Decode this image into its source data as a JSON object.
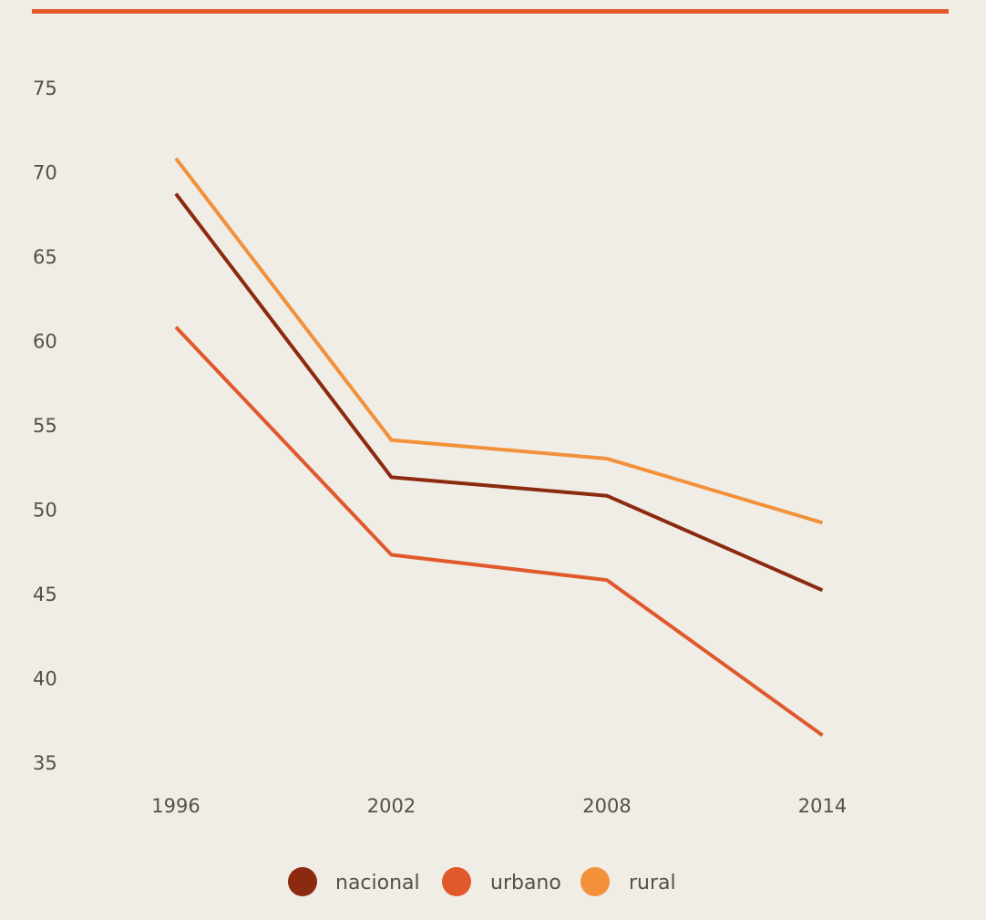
{
  "colors": {
    "background": "#f0ece6",
    "top_rule": "#e0592c",
    "text": "#55504a"
  },
  "chart_data": {
    "type": "line",
    "title": "",
    "xlabel": "",
    "ylabel": "",
    "x": [
      "1996",
      "2002",
      "2008",
      "2014"
    ],
    "y_ticks": [
      75,
      70,
      65,
      60,
      55,
      50,
      45,
      40,
      35
    ],
    "ylim": [
      35,
      75
    ],
    "grid": false,
    "legend_position": "bottom-center",
    "series": [
      {
        "name": "nacional",
        "color": "#8b2a0e",
        "values": [
          68.7,
          51.9,
          50.8,
          45.2
        ]
      },
      {
        "name": "urbano",
        "color": "#e0592c",
        "values": [
          60.8,
          47.3,
          45.8,
          36.6
        ]
      },
      {
        "name": "rural",
        "color": "#f3913a",
        "values": [
          70.8,
          54.1,
          53.0,
          49.2
        ]
      }
    ]
  }
}
